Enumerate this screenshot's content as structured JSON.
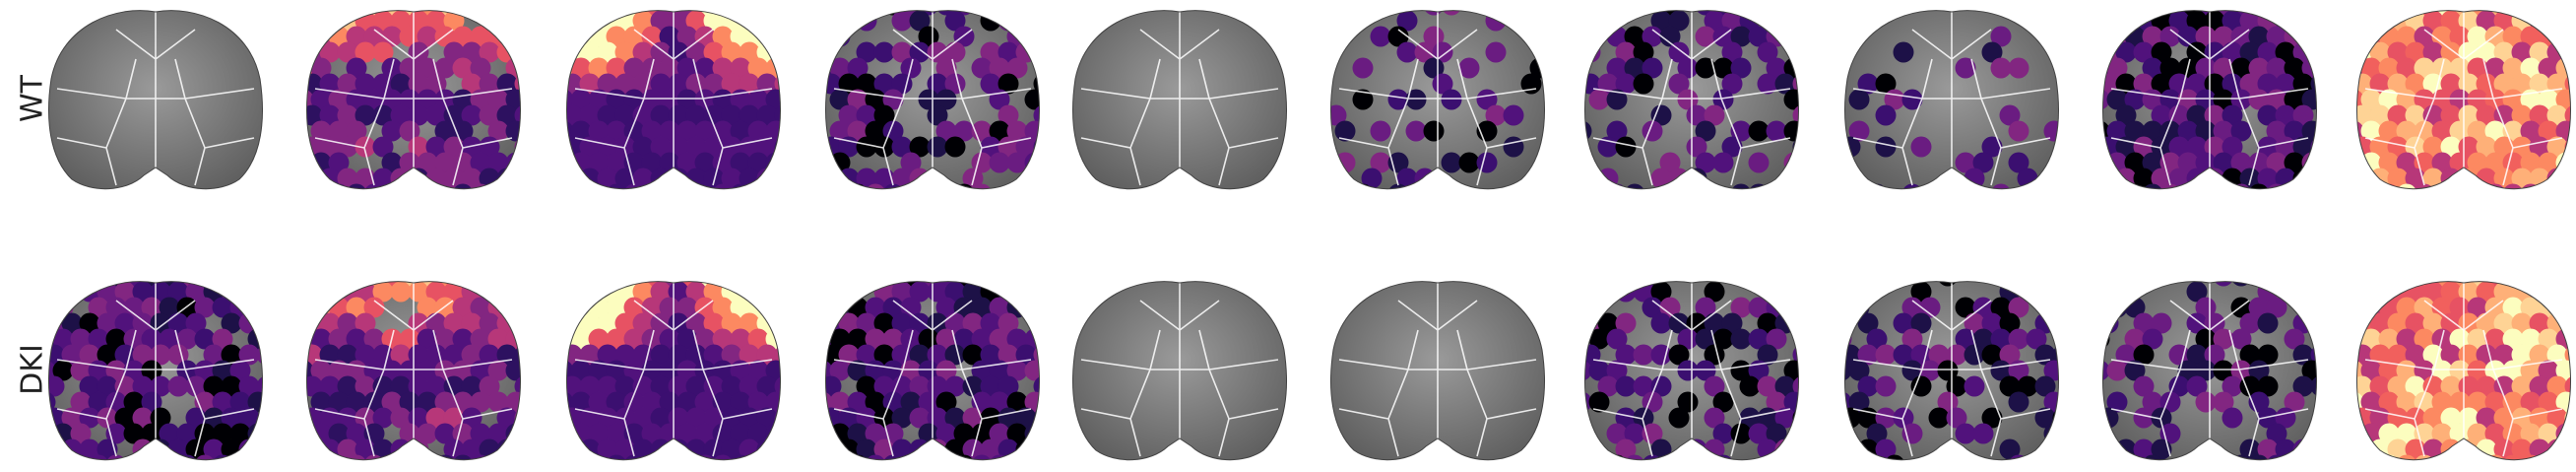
{
  "rows": [
    {
      "label": "WT"
    },
    {
      "label": "DKI"
    }
  ]
}
